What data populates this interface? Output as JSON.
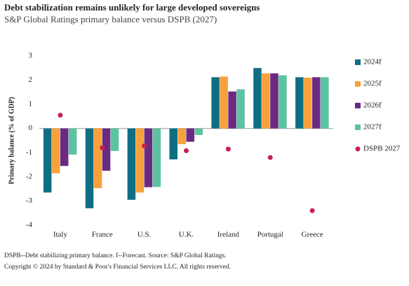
{
  "chart_data": {
    "type": "bar",
    "title": "Debt stabilization remains unlikely for large developed sovereigns",
    "subtitle": "S&P Global Ratings primary balance versus DSPB (2027)",
    "y_label": "Primary balance (% of GDP)",
    "categories": [
      "Italy",
      "France",
      "U.S.",
      "U.K.",
      "Ireland",
      "Portugal",
      "Greece"
    ],
    "series": [
      {
        "name": "2024f",
        "color": "#0f6e84",
        "type": "bar",
        "values": [
          -2.65,
          -3.3,
          -2.95,
          -1.28,
          2.12,
          2.5,
          2.12
        ]
      },
      {
        "name": "2025f",
        "color": "#f7a13c",
        "type": "bar",
        "values": [
          -1.85,
          -2.47,
          -2.65,
          -0.65,
          2.15,
          2.28,
          2.1
        ]
      },
      {
        "name": "2026f",
        "color": "#6b2a82",
        "type": "bar",
        "values": [
          -1.55,
          -1.75,
          -2.43,
          -0.55,
          1.53,
          2.28,
          2.12
        ]
      },
      {
        "name": "2027f",
        "color": "#5cc3a2",
        "type": "bar",
        "values": [
          -1.08,
          -0.93,
          -2.42,
          -0.27,
          1.62,
          2.2,
          2.12
        ]
      },
      {
        "name": "DSPB 2027",
        "color": "#c8214b",
        "type": "scatter",
        "values": [
          0.55,
          -0.8,
          -0.72,
          -0.92,
          -0.85,
          -1.2,
          -3.4
        ]
      }
    ],
    "ylim": [
      -4,
      3
    ],
    "yticks": [
      -4,
      -3,
      -2,
      -1,
      0,
      1,
      2,
      3
    ],
    "grid": false,
    "notes": [
      "DSPB--Debt stabilizing primary balance. f--Forecast. Source: S&P Global Ratings.",
      "Copyright © 2024 by Standard & Poor's Financial Services LLC. All rights reserved."
    ]
  }
}
